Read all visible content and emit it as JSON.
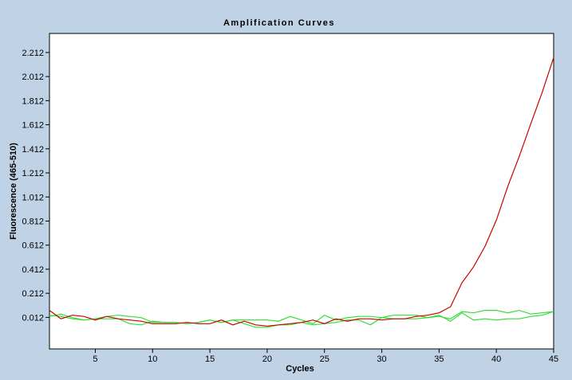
{
  "chart_data": {
    "type": "line",
    "title": "Amplification Curves",
    "xlabel": "Cycles",
    "ylabel": "Fluorescence (465-510)",
    "xlim": [
      1,
      45
    ],
    "ylim": [
      -0.25,
      2.37
    ],
    "xticks": [
      5,
      10,
      15,
      20,
      25,
      30,
      35,
      40,
      45
    ],
    "yticks": [
      0.012,
      0.212,
      0.412,
      0.612,
      0.812,
      1.012,
      1.212,
      1.412,
      1.612,
      1.812,
      2.012,
      2.212
    ],
    "ytick_labels": [
      "0.012",
      "0.212",
      "0.412",
      "0.612",
      "0.812",
      "1.012",
      "1.212",
      "1.412",
      "1.612",
      "1.812",
      "2.012",
      "2.212"
    ],
    "grid": false,
    "x": [
      1,
      2,
      3,
      4,
      5,
      6,
      7,
      8,
      9,
      10,
      11,
      12,
      13,
      14,
      15,
      16,
      17,
      18,
      19,
      20,
      21,
      22,
      23,
      24,
      25,
      26,
      27,
      28,
      29,
      30,
      31,
      32,
      33,
      34,
      35,
      36,
      37,
      38,
      39,
      40,
      41,
      42,
      43,
      44,
      45
    ],
    "series": [
      {
        "color": "#cc0000",
        "values": [
          0.07,
          0.0,
          0.03,
          0.02,
          -0.01,
          0.02,
          0.0,
          -0.01,
          -0.02,
          -0.04,
          -0.04,
          -0.04,
          -0.03,
          -0.04,
          -0.04,
          -0.01,
          -0.05,
          -0.02,
          -0.05,
          -0.06,
          -0.05,
          -0.04,
          -0.03,
          -0.01,
          -0.04,
          0.0,
          -0.02,
          0.0,
          0.0,
          -0.01,
          0.0,
          0.0,
          0.02,
          0.03,
          0.05,
          0.1,
          0.3,
          0.43,
          0.6,
          0.82,
          1.1,
          1.35,
          1.62,
          1.88,
          2.17
        ]
      },
      {
        "color": "#33dd33",
        "values": [
          0.02,
          0.04,
          0.01,
          -0.01,
          0.0,
          0.0,
          0.0,
          -0.04,
          -0.05,
          -0.02,
          -0.03,
          -0.03,
          -0.04,
          -0.03,
          -0.01,
          -0.03,
          -0.01,
          -0.04,
          -0.07,
          -0.07,
          -0.05,
          -0.05,
          -0.03,
          -0.05,
          -0.04,
          -0.03,
          -0.01,
          -0.01,
          -0.05,
          0.01,
          0.03,
          0.03,
          0.03,
          0.01,
          0.03,
          -0.02,
          0.05,
          -0.01,
          0.0,
          -0.01,
          0.0,
          0.0,
          0.02,
          0.03,
          0.06
        ]
      },
      {
        "color": "#33dd33",
        "values": [
          0.03,
          0.02,
          0.0,
          -0.01,
          0.0,
          0.02,
          0.03,
          0.02,
          0.01,
          -0.03,
          -0.03,
          -0.03,
          -0.04,
          -0.03,
          -0.01,
          -0.03,
          -0.01,
          -0.01,
          -0.01,
          -0.01,
          -0.02,
          0.02,
          -0.01,
          -0.04,
          0.03,
          -0.01,
          0.01,
          0.02,
          0.02,
          0.01,
          0.0,
          0.0,
          0.0,
          0.01,
          0.02,
          0.0,
          0.06,
          0.05,
          0.07,
          0.07,
          0.05,
          0.07,
          0.04,
          0.05,
          0.06
        ]
      }
    ]
  }
}
